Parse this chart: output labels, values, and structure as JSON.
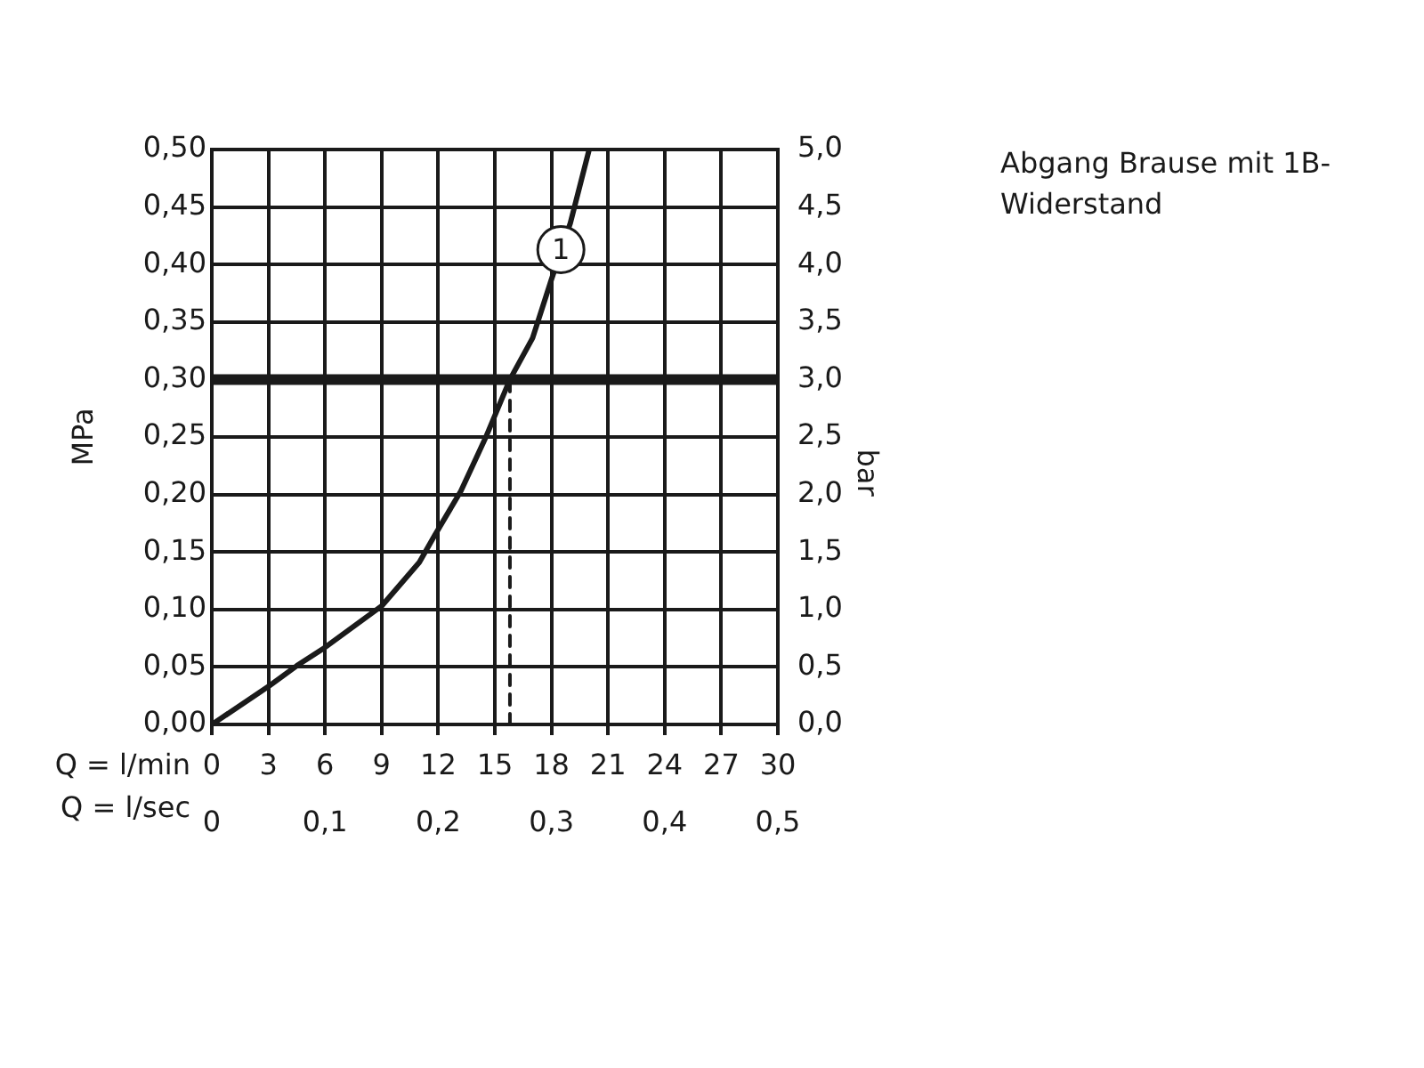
{
  "chart_data": {
    "type": "line",
    "xlabel": "Q = l/min",
    "x2label": "Q = l/sec",
    "ylabel": "MPa",
    "y2label": "bar",
    "xlim": [
      0,
      30
    ],
    "xticks": [
      0,
      3,
      6,
      9,
      12,
      15,
      18,
      21,
      24,
      27,
      30
    ],
    "x2lim": [
      0,
      0.5
    ],
    "x2ticks": [
      {
        "value": 0,
        "label": "0"
      },
      {
        "value": 0.1,
        "label": "0,1"
      },
      {
        "value": 0.2,
        "label": "0,2"
      },
      {
        "value": 0.3,
        "label": "0,3"
      },
      {
        "value": 0.4,
        "label": "0,4"
      },
      {
        "value": 0.5,
        "label": "0,5"
      }
    ],
    "ylim": [
      0,
      0.5
    ],
    "yticks": [
      {
        "value": 0,
        "label": "0,00"
      },
      {
        "value": 0.05,
        "label": "0,05"
      },
      {
        "value": 0.1,
        "label": "0,10"
      },
      {
        "value": 0.15,
        "label": "0,15"
      },
      {
        "value": 0.2,
        "label": "0,20"
      },
      {
        "value": 0.25,
        "label": "0,25"
      },
      {
        "value": 0.3,
        "label": "0,30"
      },
      {
        "value": 0.35,
        "label": "0,35"
      },
      {
        "value": 0.4,
        "label": "0,40"
      },
      {
        "value": 0.45,
        "label": "0,45"
      },
      {
        "value": 0.5,
        "label": "0,50"
      }
    ],
    "y2lim": [
      0,
      5
    ],
    "y2ticks": [
      {
        "value": 0,
        "label": "0,0"
      },
      {
        "value": 0.5,
        "label": "0,5"
      },
      {
        "value": 1,
        "label": "1,0"
      },
      {
        "value": 1.5,
        "label": "1,5"
      },
      {
        "value": 2,
        "label": "2,0"
      },
      {
        "value": 2.5,
        "label": "2,5"
      },
      {
        "value": 3,
        "label": "3,0"
      },
      {
        "value": 3.5,
        "label": "3,5"
      },
      {
        "value": 4,
        "label": "4,0"
      },
      {
        "value": 4.5,
        "label": "4,5"
      },
      {
        "value": 5,
        "label": "5,0"
      }
    ],
    "grid": true,
    "marker": "none",
    "series": [
      {
        "type": "line",
        "color": "#1a1a1a",
        "line_style": "solid",
        "x": [
          0,
          3,
          4.5,
          6,
          9,
          11,
          11.8,
          13.2,
          14.5,
          15.8,
          17,
          18,
          19,
          20
        ],
        "values": [
          0,
          0.033,
          0.051,
          0.067,
          0.103,
          0.141,
          0.164,
          0.203,
          0.249,
          0.3,
          0.336,
          0.387,
          0.436,
          0.5
        ]
      },
      {
        "type": "line",
        "color": "#1a1a1a",
        "line_style": "dashed",
        "x": [
          15.8,
          15.8
        ],
        "values": [
          0,
          0.3
        ]
      }
    ],
    "ref_lines": [
      {
        "axis": "y",
        "value": 0.3,
        "color": "#1a1a1a"
      }
    ],
    "annotations": [
      {
        "text": "1",
        "x": 18.5,
        "y": 0.413
      },
      "Abgang Brause mit 1B-Widerstand"
    ]
  }
}
